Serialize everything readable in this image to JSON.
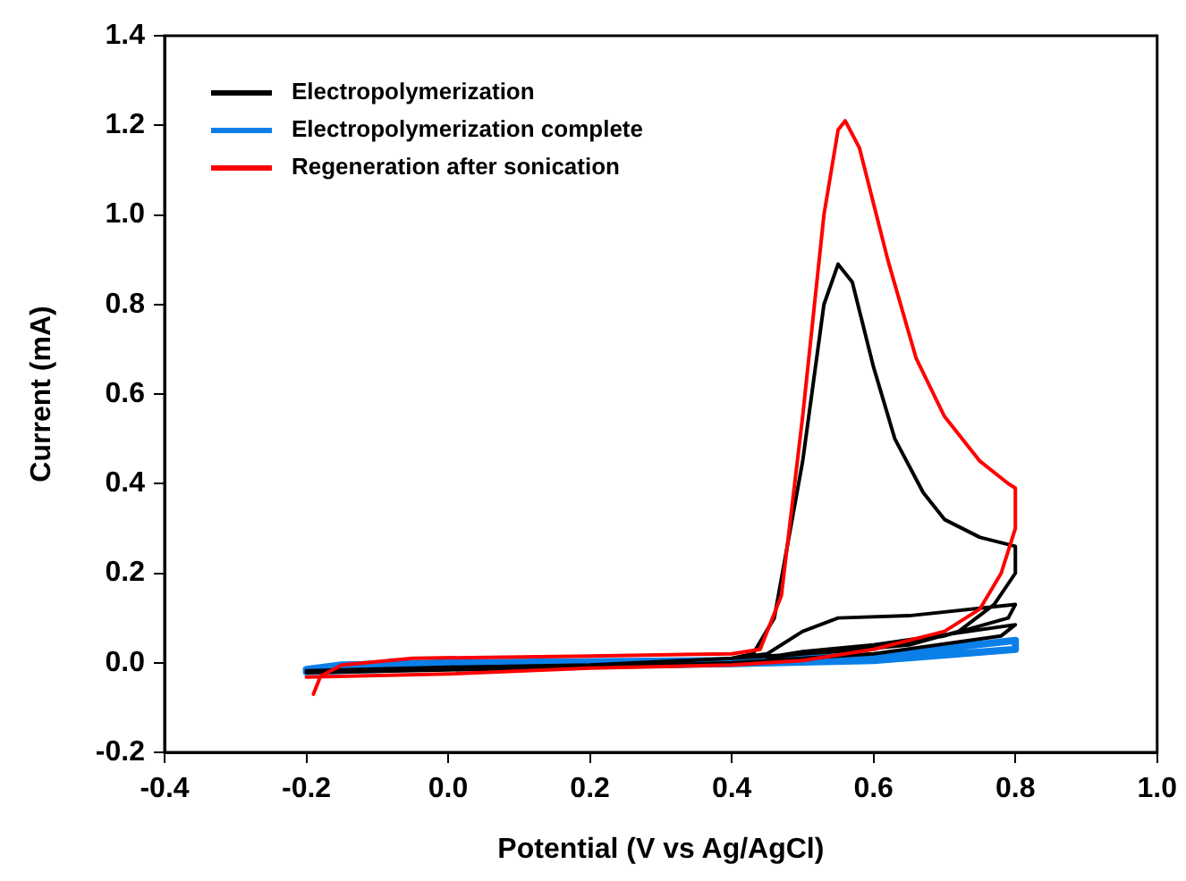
{
  "chart_data": {
    "type": "line",
    "xlabel": "Potential (V vs Ag/AgCl)",
    "ylabel": "Current (mA)",
    "xlim": [
      -0.4,
      1.0
    ],
    "ylim": [
      -0.2,
      1.4
    ],
    "xticks": [
      -0.4,
      -0.2,
      {
        "value": 0,
        "label": "0.0"
      },
      0.2,
      0.4,
      0.6,
      0.8,
      {
        "value": 1,
        "label": "1.0"
      }
    ],
    "yticks": [
      -0.2,
      {
        "value": 0,
        "label": "0.0"
      },
      0.2,
      0.4,
      0.6,
      0.8,
      {
        "value": 1,
        "label": "1.0"
      },
      1.2,
      1.4
    ],
    "grid": false,
    "legend": "top left",
    "marker": "none",
    "line_style": "solid",
    "series": [
      {
        "name": "Electropolymerization",
        "color": "#000000",
        "x": [
          -0.2,
          0,
          0.2,
          0.4,
          0.43,
          0.46,
          0.5,
          0.53,
          0.55,
          0.57,
          0.6,
          0.63,
          0.67,
          0.7,
          0.75,
          0.8,
          0.8,
          0.77,
          0.72,
          0.65,
          0.55,
          0.45,
          0.4,
          0.45,
          0.5,
          0.55,
          0.65,
          0.8,
          0.79,
          0.7,
          0.6,
          0.5,
          0.45,
          0.5,
          0.6,
          0.8,
          0.78,
          0.6,
          0.4,
          0.2,
          0,
          -0.2
        ],
        "values": [
          -0.018,
          -0.01,
          -0.005,
          0.01,
          0.02,
          0.1,
          0.45,
          0.8,
          0.89,
          0.85,
          0.66,
          0.5,
          0.38,
          0.32,
          0.28,
          0.26,
          0.2,
          0.13,
          0.07,
          0.04,
          0.025,
          0.015,
          0.01,
          0.02,
          0.07,
          0.1,
          0.105,
          0.13,
          0.1,
          0.06,
          0.035,
          0.02,
          0.012,
          0.025,
          0.04,
          0.085,
          0.06,
          0.02,
          0,
          -0.01,
          -0.016,
          -0.022
        ]
      },
      {
        "name": "Electropolymerization complete",
        "color": "#0a7fe8",
        "x": [
          -0.2,
          -0.15,
          0,
          0.4,
          0.6,
          0.8,
          0.8,
          0.6,
          0.4,
          0,
          -0.2
        ],
        "values": [
          -0.015,
          -0.005,
          0,
          0.005,
          0.015,
          0.05,
          0.03,
          0.005,
          -0.002,
          -0.01,
          -0.02
        ]
      },
      {
        "name": "Regeneration after sonication",
        "color": "#ff0000",
        "x": [
          -0.19,
          -0.18,
          -0.15,
          -0.05,
          0.2,
          0.4,
          0.44,
          0.47,
          0.5,
          0.53,
          0.55,
          0.56,
          0.58,
          0.62,
          0.66,
          0.7,
          0.75,
          0.79,
          0.8,
          0.8,
          0.78,
          0.75,
          0.7,
          0.6,
          0.5,
          0.4,
          0.2,
          0,
          -0.2
        ],
        "values": [
          -0.07,
          -0.03,
          -0.005,
          0.01,
          0.015,
          0.02,
          0.03,
          0.15,
          0.55,
          1.0,
          1.19,
          1.21,
          1.15,
          0.9,
          0.68,
          0.55,
          0.45,
          0.4,
          0.39,
          0.3,
          0.2,
          0.12,
          0.07,
          0.03,
          0.005,
          -0.005,
          -0.012,
          -0.025,
          -0.032
        ]
      }
    ]
  }
}
